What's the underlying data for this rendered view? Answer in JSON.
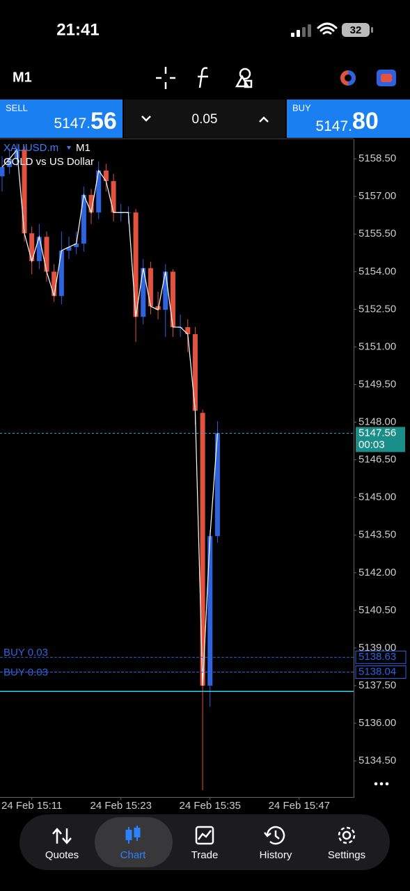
{
  "status_bar": {
    "time": "21:41",
    "battery": "32"
  },
  "toolbar": {
    "timeframe": "M1"
  },
  "trade_panel": {
    "sell_label": "SELL",
    "sell_price_main": "5147.",
    "sell_price_big": "56",
    "volume": "0.05",
    "buy_label": "BUY",
    "buy_price_main": "5147.",
    "buy_price_big": "80"
  },
  "chart_data": {
    "type": "candlestick",
    "symbol": "XAUUSD.m",
    "timeframe": "M1",
    "subtitle": "GOLD vs US Dollar",
    "categories": [
      null,
      null,
      null,
      null,
      "24 Feb 15:11",
      null,
      null,
      null,
      null,
      null,
      null,
      null,
      null,
      null,
      null,
      null,
      "24 Feb 15:23",
      null,
      null,
      null,
      null,
      null,
      null,
      null,
      null,
      null,
      null,
      null,
      "24 Feb 15:35",
      null,
      null,
      null,
      null,
      null,
      null,
      null,
      null,
      null,
      null,
      null,
      "24 Feb 15:47",
      null,
      null,
      null,
      null,
      null,
      null
    ],
    "open": [
      5157.8,
      5158.17,
      5158.5,
      5158.86,
      5155.53,
      5154.42,
      5155.39,
      5154.0,
      5153.03,
      5154.84,
      5154.98,
      5155.12,
      5157.06,
      5156.36,
      5158.03,
      5157.61,
      5156.36,
      5156.36,
      5156.36,
      5152.2,
      5154.14,
      5152.62,
      5152.48,
      5154.0,
      5151.79,
      5151.79,
      5151.51,
      5148.37,
      5137.5,
      5143.46,
      null,
      null,
      null,
      null,
      null,
      null,
      null,
      null,
      null,
      null,
      null,
      null,
      null,
      null,
      null,
      null,
      null
    ],
    "high": [
      5158.6,
      5158.9,
      5159.1,
      5159.0,
      5155.8,
      5155.9,
      5155.6,
      5154.3,
      5155.6,
      5155.4,
      5155.6,
      5157.4,
      5157.3,
      5158.4,
      5158.3,
      5157.9,
      5156.7,
      5156.6,
      5156.5,
      5154.5,
      5154.4,
      5153.2,
      5154.3,
      5154.1,
      5152.3,
      5152.1,
      5151.8,
      5148.5,
      5143.7,
      5148.04,
      null,
      null,
      null,
      null,
      null,
      null,
      null,
      null,
      null,
      null,
      null,
      null,
      null,
      null,
      null,
      null,
      null
    ],
    "low": [
      5157.2,
      5157.9,
      5158.2,
      5155.2,
      5153.9,
      5154.1,
      5153.6,
      5152.8,
      5152.7,
      5154.5,
      5154.7,
      5154.8,
      5155.9,
      5156.1,
      5157.2,
      5156.0,
      5156.0,
      5155.9,
      5151.2,
      5151.9,
      5152.3,
      5152.1,
      5151.4,
      5151.4,
      5151.4,
      5150.8,
      5147.9,
      5133.33,
      5136.66,
      5143.2,
      null,
      null,
      null,
      null,
      null,
      null,
      null,
      null,
      null,
      null,
      null,
      null,
      null,
      null,
      null,
      null,
      null
    ],
    "close": [
      5158.17,
      5158.5,
      5158.86,
      5155.53,
      5154.42,
      5155.39,
      5154.0,
      5153.03,
      5154.84,
      5154.98,
      5155.12,
      5157.06,
      5156.36,
      5158.03,
      5157.61,
      5156.36,
      5156.36,
      5156.36,
      5152.2,
      5154.14,
      5152.62,
      5152.48,
      5154.0,
      5151.79,
      5151.79,
      5151.51,
      5148.46,
      5137.5,
      5143.46,
      5147.56,
      null,
      null,
      null,
      null,
      null,
      null,
      null,
      null,
      null,
      null,
      null,
      null,
      null,
      null,
      null,
      null,
      null
    ],
    "up_color": "#2f62de",
    "down_color": "#e2533f",
    "line_color": "#ffffff",
    "ylim": [
      5133.06,
      5159.28
    ],
    "yticks": [
      {
        "value": 5158.5,
        "label": "5158.50"
      },
      {
        "value": 5157,
        "label": "5157.00"
      },
      {
        "value": 5155.5,
        "label": "5155.50"
      },
      {
        "value": 5154,
        "label": "5154.00"
      },
      {
        "value": 5152.5,
        "label": "5152.50"
      },
      {
        "value": 5151,
        "label": "5151.00"
      },
      {
        "value": 5149.5,
        "label": "5149.50"
      },
      {
        "value": 5148,
        "label": "5148.00"
      },
      {
        "value": 5146.5,
        "label": "5146.50"
      },
      {
        "value": 5145,
        "label": "5145.00"
      },
      {
        "value": 5143.5,
        "label": "5143.50"
      },
      {
        "value": 5142,
        "label": "5142.00"
      },
      {
        "value": 5140.5,
        "label": "5140.50"
      },
      {
        "value": 5139,
        "label": "5139.00"
      },
      {
        "value": 5137.5,
        "label": "5137.50"
      },
      {
        "value": 5136,
        "label": "5136.00"
      },
      {
        "value": 5134.5,
        "label": "5134.50"
      }
    ],
    "current_price": 5147.56,
    "current_timer": "00:03",
    "orders": [
      {
        "label": "BUY 0.03",
        "price": 5138.63
      },
      {
        "label": "BUY 0.03",
        "price": 5138.04
      }
    ],
    "level": 5137.27
  },
  "nav": {
    "items": [
      "Quotes",
      "Chart",
      "Trade",
      "History",
      "Settings"
    ]
  }
}
